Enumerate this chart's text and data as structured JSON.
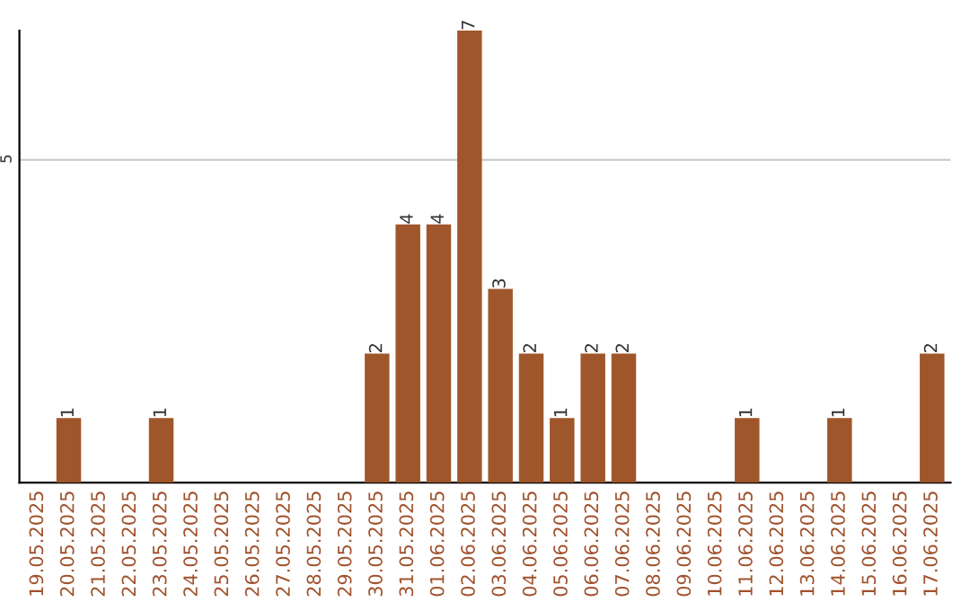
{
  "chart_data": {
    "type": "bar",
    "categories": [
      "19.05.2025",
      "20.05.2025",
      "21.05.2025",
      "22.05.2025",
      "23.05.2025",
      "24.05.2025",
      "25.05.2025",
      "26.05.2025",
      "27.05.2025",
      "28.05.2025",
      "29.05.2025",
      "30.05.2025",
      "31.05.2025",
      "01.06.2025",
      "02.06.2025",
      "03.06.2025",
      "04.06.2025",
      "05.06.2025",
      "06.06.2025",
      "07.06.2025",
      "08.06.2025",
      "09.06.2025",
      "10.06.2025",
      "11.06.2025",
      "12.06.2025",
      "13.06.2025",
      "14.06.2025",
      "15.06.2025",
      "16.06.2025",
      "17.06.2025"
    ],
    "values": [
      0,
      1,
      0,
      0,
      1,
      0,
      0,
      0,
      0,
      0,
      0,
      2,
      4,
      4,
      7,
      3,
      2,
      1,
      2,
      2,
      0,
      0,
      0,
      1,
      0,
      0,
      1,
      0,
      0,
      2
    ],
    "value_labels": [
      null,
      "1",
      null,
      null,
      "1",
      null,
      null,
      null,
      null,
      null,
      null,
      "2",
      "4",
      "4",
      "7",
      "3",
      "2",
      "1",
      "2",
      "2",
      null,
      null,
      null,
      "1",
      null,
      null,
      "1",
      null,
      null,
      "2"
    ],
    "color": "#a0562b",
    "ylim": [
      0,
      7
    ],
    "yticks": [
      5
    ],
    "grid": "y"
  }
}
